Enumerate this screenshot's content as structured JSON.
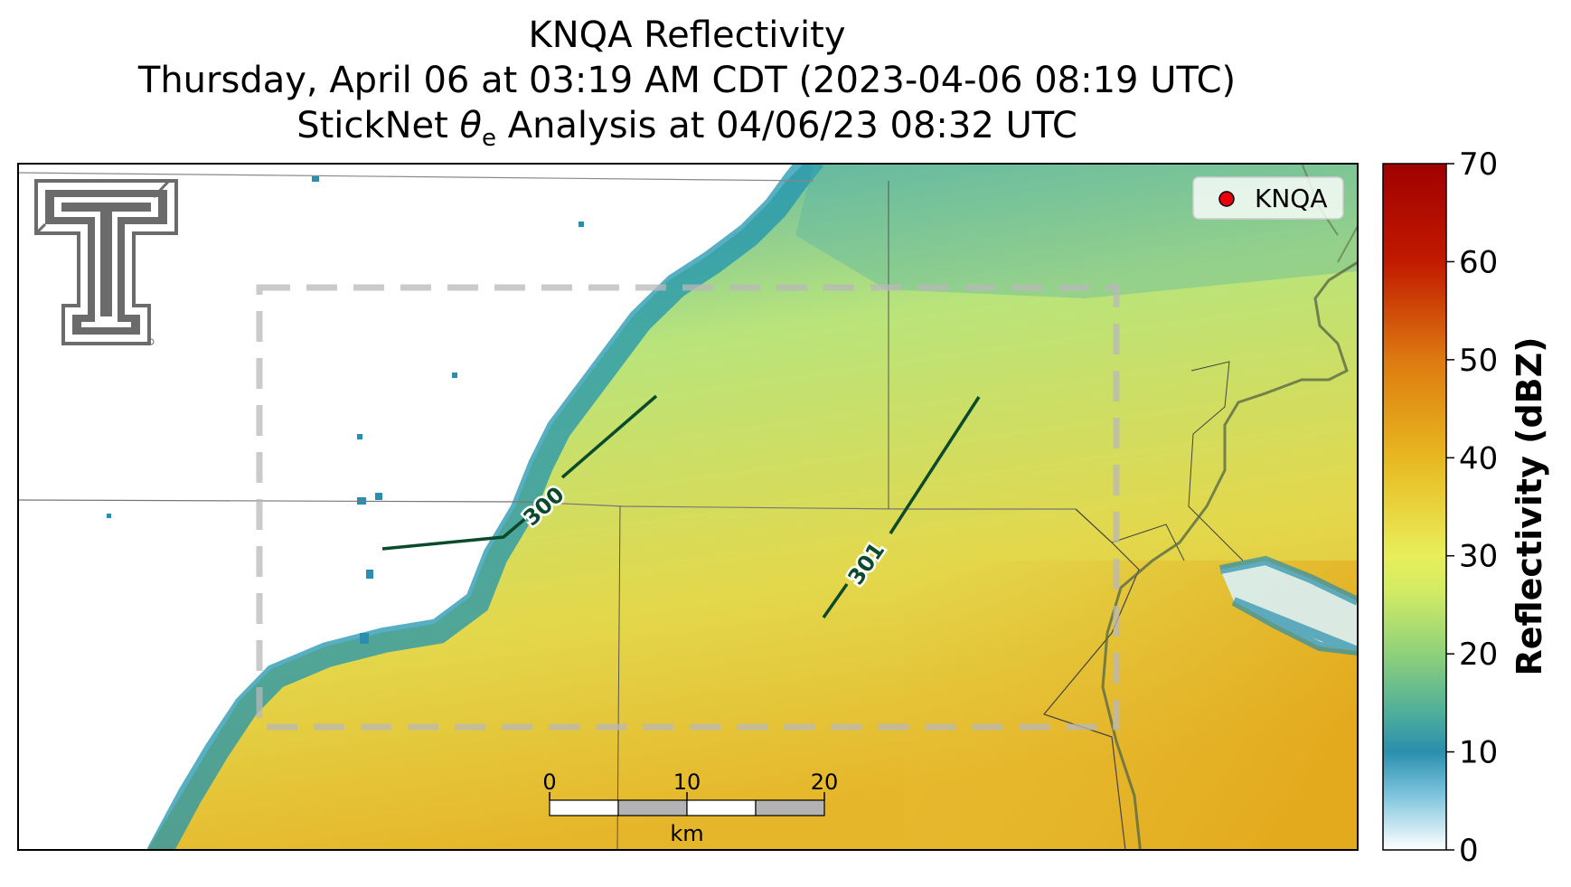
{
  "header": {
    "title": "KNQA Reflectivity",
    "subtitle_time": "Thursday, April 06 at 03:19 AM CDT (2023-04-06 08:19 UTC)",
    "subtitle_analysis_prefix": "StickNet ",
    "subtitle_analysis_symbol": "θ",
    "subtitle_analysis_subscript": "e",
    "subtitle_analysis_suffix": " Analysis at 04/06/23 08:32 UTC"
  },
  "legend": {
    "marker_color": "#e8000b",
    "label": "KNQA"
  },
  "colorbar": {
    "label": "Reflectivity (dBZ)",
    "vmin": 0,
    "vmax": 70,
    "ticks": [
      "0",
      "10",
      "20",
      "30",
      "40",
      "50",
      "60",
      "70"
    ],
    "tick_values": [
      0,
      10,
      20,
      30,
      40,
      50,
      60,
      70
    ],
    "colors": [
      "#ffffff",
      "#2a8fae",
      "#8fd17a",
      "#e8ee5a",
      "#e8b820",
      "#dd7a10",
      "#c21a00",
      "#a00000"
    ]
  },
  "contours": [
    {
      "label": "300",
      "color": "#0b4a2a"
    },
    {
      "label": "301",
      "color": "#0b4a2a"
    }
  ],
  "scale_bar": {
    "ticks": [
      "0",
      "10",
      "20"
    ],
    "unit": "km"
  },
  "logo": {
    "name": "texas-tech-double-t-logo",
    "color": "#6b6b6b"
  }
}
